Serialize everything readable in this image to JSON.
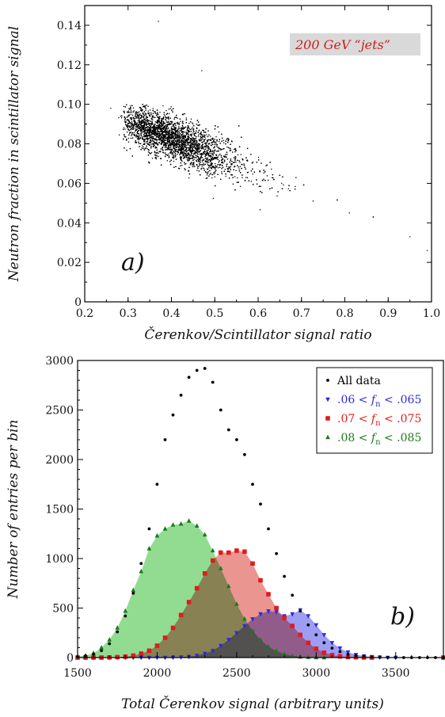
{
  "chart_data": [
    {
      "type": "scatter",
      "panel_label": "a)",
      "annotation": "200 GeV “jets”",
      "annotation_color": "#cc1f1f",
      "annotation_bg": "#d9d9d9",
      "xlabel": "Čerenkov/Scintillator signal ratio",
      "ylabel": "Neutron fraction in scintillator signal",
      "xlim": [
        0.2,
        1.0
      ],
      "ylim": [
        0.0,
        0.15
      ],
      "xticks": [
        "0.2",
        "0.3",
        "0.4",
        "0.5",
        "0.6",
        "0.7",
        "0.8",
        "0.9",
        "1.0"
      ],
      "yticks": [
        "0",
        "0.02",
        "0.04",
        "0.06",
        "0.08",
        "0.10",
        "0.12",
        "0.14"
      ],
      "grid": false,
      "distribution": {
        "center": [
          0.42,
          0.081
        ],
        "correlation": "negative",
        "x_extent": [
          0.25,
          0.96
        ],
        "y_extent": [
          0.035,
          0.1
        ],
        "slope": -0.085,
        "outliers": [
          [
            0.37,
            0.142
          ],
          [
            0.99,
            0.026
          ],
          [
            0.47,
            0.117
          ],
          [
            0.26,
            0.098
          ],
          [
            0.95,
            0.033
          ]
        ]
      }
    },
    {
      "type": "scatter",
      "panel_label": "b)",
      "xlabel": "Total Čerenkov signal (arbitrary units)",
      "ylabel": "Number of entries per bin",
      "xlim": [
        1500,
        3800
      ],
      "ylim": [
        0,
        3000
      ],
      "xticks": [
        "1500",
        "2000",
        "2500",
        "3000",
        "3500"
      ],
      "yticks": [
        "0",
        "500",
        "1000",
        "1500",
        "2000",
        "2500",
        "3000"
      ],
      "grid": false,
      "legend_position": "top-right",
      "x": [
        1500,
        1550,
        1600,
        1650,
        1700,
        1750,
        1800,
        1850,
        1900,
        1950,
        2000,
        2050,
        2100,
        2150,
        2200,
        2250,
        2300,
        2350,
        2400,
        2450,
        2500,
        2550,
        2600,
        2650,
        2700,
        2750,
        2800,
        2850,
        2900,
        2950,
        3000,
        3050,
        3100,
        3150,
        3200,
        3250,
        3300,
        3350,
        3400,
        3450,
        3500,
        3550,
        3600,
        3650,
        3700,
        3750,
        3800
      ],
      "series": [
        {
          "name": "All data",
          "color": "#000000",
          "marker": "dot",
          "values": [
            8,
            18,
            35,
            70,
            140,
            260,
            420,
            650,
            950,
            1300,
            1750,
            2200,
            2450,
            2650,
            2830,
            2900,
            2920,
            2780,
            2500,
            2300,
            2200,
            2050,
            1750,
            1550,
            1300,
            1050,
            820,
            630,
            470,
            330,
            230,
            150,
            95,
            60,
            35,
            20,
            12,
            6,
            3,
            1,
            0,
            0,
            0,
            0,
            0,
            0,
            0
          ]
        },
        {
          "name": ".06 < fn < .065",
          "label_prefix": ".06 < ",
          "label_var": "f",
          "label_sub": "n",
          "label_suffix": " < .065",
          "color": "#2b2bd9",
          "fill": "#8c8cf2",
          "marker": "triangle-down",
          "values": [
            0,
            0,
            0,
            0,
            0,
            0,
            0,
            0,
            0,
            0,
            0,
            0,
            2,
            5,
            10,
            20,
            40,
            70,
            120,
            180,
            250,
            320,
            390,
            440,
            470,
            460,
            420,
            440,
            480,
            420,
            330,
            230,
            150,
            95,
            55,
            30,
            15,
            8,
            3,
            1,
            0,
            0,
            0,
            0,
            0,
            0,
            0
          ]
        },
        {
          "name": ".07 < fn < .075",
          "label_prefix": ".07 < ",
          "label_var": "f",
          "label_sub": "n",
          "label_suffix": " < .075",
          "color": "#e01b1b",
          "fill": "#e8827d",
          "marker": "square",
          "values": [
            0,
            0,
            0,
            0,
            2,
            5,
            10,
            20,
            40,
            70,
            120,
            200,
            300,
            430,
            560,
            700,
            850,
            980,
            1060,
            1060,
            1080,
            1070,
            950,
            780,
            640,
            500,
            400,
            320,
            230,
            150,
            90,
            50,
            25,
            12,
            6,
            3,
            1,
            0,
            0,
            0,
            0,
            0,
            0,
            0,
            0,
            0,
            0
          ]
        },
        {
          "name": ".08 < fn < .085",
          "label_prefix": ".08 < ",
          "label_var": "f",
          "label_sub": "n",
          "label_suffix": " < .085",
          "color": "#1a7a1a",
          "fill": "#7fd67f",
          "marker": "triangle-up",
          "values": [
            10,
            20,
            45,
            100,
            180,
            300,
            470,
            680,
            870,
            1100,
            1230,
            1300,
            1340,
            1350,
            1380,
            1330,
            1240,
            1080,
            900,
            720,
            540,
            390,
            270,
            180,
            110,
            65,
            35,
            18,
            8,
            3,
            1,
            0,
            0,
            0,
            0,
            0,
            0,
            0,
            0,
            0,
            0,
            0,
            0,
            0,
            0,
            0,
            0
          ]
        }
      ]
    }
  ]
}
